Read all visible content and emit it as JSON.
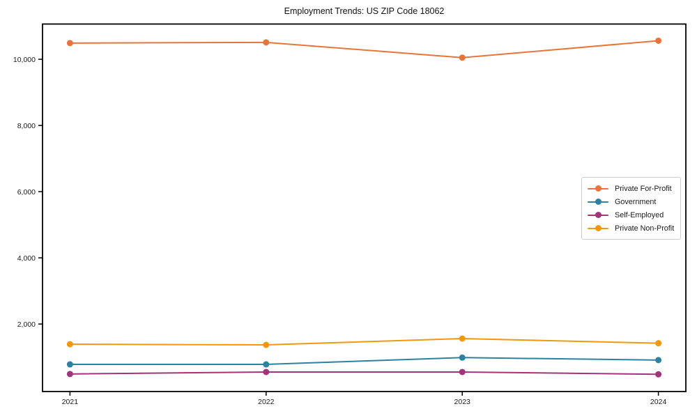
{
  "chart_data": {
    "type": "line",
    "title": "Employment Trends: US ZIP Code 18062",
    "x": [
      2021,
      2022,
      2023,
      2024
    ],
    "x_labels": [
      "2021",
      "2022",
      "2023",
      "2024"
    ],
    "series": [
      {
        "name": "Private For-Profit",
        "color": "#e8743b",
        "values": [
          10490,
          10510,
          10050,
          10560
        ]
      },
      {
        "name": "Government",
        "color": "#2d82a0",
        "values": [
          780,
          780,
          985,
          910
        ]
      },
      {
        "name": "Self-Employed",
        "color": "#a2347a",
        "values": [
          490,
          550,
          550,
          480
        ]
      },
      {
        "name": "Private Non-Profit",
        "color": "#f0980e",
        "values": [
          1390,
          1370,
          1560,
          1420
        ]
      }
    ],
    "yticks": [
      2000,
      4000,
      6000,
      8000,
      10000
    ],
    "ytick_labels": [
      "2,000",
      "4,000",
      "6,000",
      "8,000",
      "10,000"
    ],
    "ylim": [
      -40,
      11065
    ],
    "xlim": [
      2020.86,
      2024.14
    ],
    "xlabel": "",
    "ylabel": "",
    "grid": false,
    "legend_position": "center-right",
    "axis_color": "#000000"
  }
}
